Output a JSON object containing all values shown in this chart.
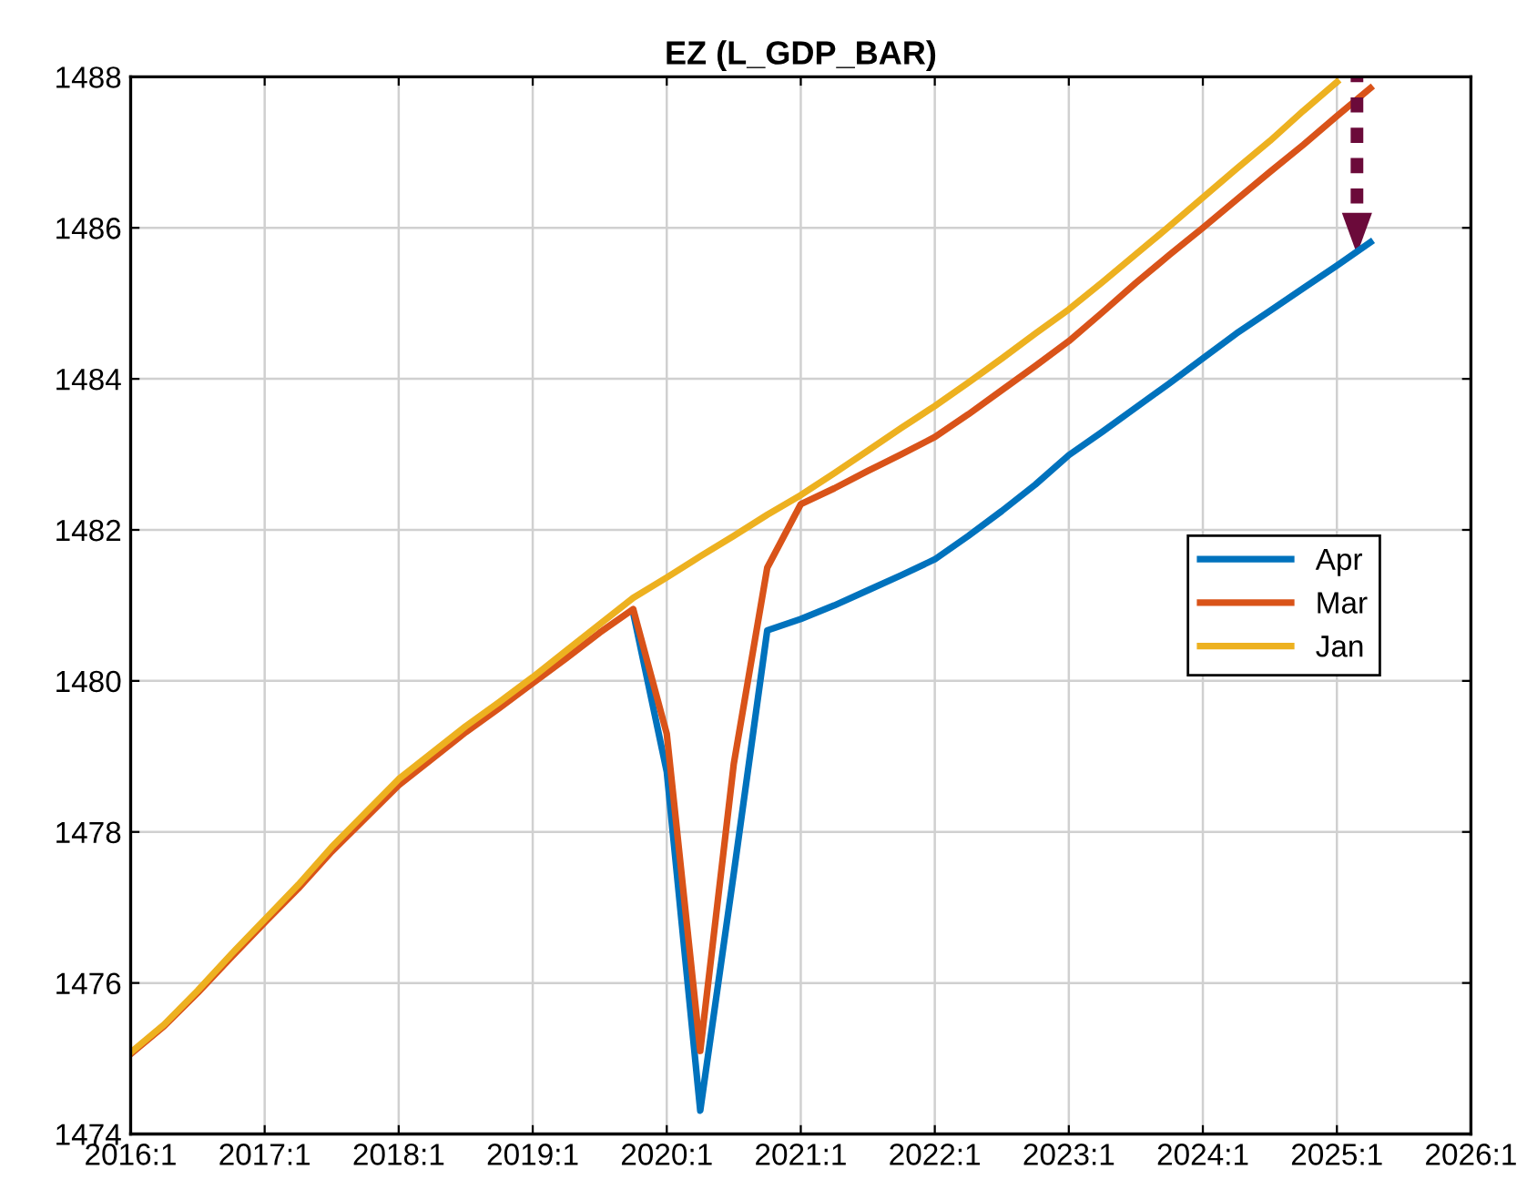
{
  "chart_data": {
    "type": "line",
    "title": "EZ (L_GDP_BAR)",
    "categories": [
      "2016:1",
      null,
      null,
      null,
      "2017:1",
      null,
      null,
      null,
      "2018:1",
      null,
      null,
      null,
      "2019:1",
      null,
      null,
      null,
      "2020:1",
      null,
      null,
      null,
      "2021:1",
      null,
      null,
      null,
      "2022:1",
      null,
      null,
      null,
      "2023:1",
      null,
      null,
      null,
      "2024:1",
      null,
      null,
      null,
      "2025:1",
      null,
      null,
      null,
      "2026:1"
    ],
    "series": [
      {
        "name": "Apr",
        "color": "#0072bd",
        "values": [
          null,
          null,
          null,
          null,
          null,
          null,
          null,
          null,
          null,
          null,
          null,
          null,
          null,
          null,
          null,
          1480.9,
          1478.8,
          1474.31,
          1477.45,
          1480.67,
          1480.82,
          1481.0,
          1481.2,
          1481.4,
          1481.61,
          1481.92,
          1482.25,
          1482.6,
          1482.99,
          1483.3,
          1483.62,
          1483.94,
          1484.27,
          1484.6,
          1484.9,
          1485.2,
          1485.5,
          1485.81,
          null,
          null,
          null
        ]
      },
      {
        "name": "Mar",
        "color": "#d95319",
        "values": [
          1475.06,
          1475.43,
          1475.87,
          1476.34,
          1476.8,
          1477.25,
          1477.74,
          1478.18,
          1478.62,
          1478.97,
          1479.32,
          1479.64,
          1479.97,
          1480.3,
          1480.64,
          1480.95,
          1479.3,
          1475.1,
          1478.9,
          1481.5,
          1482.34,
          1482.55,
          1482.78,
          1483.0,
          1483.23,
          1483.53,
          1483.85,
          1484.17,
          1484.5,
          1484.88,
          1485.27,
          1485.64,
          1486.0,
          1486.37,
          1486.74,
          1487.1,
          1487.48,
          1487.85,
          null,
          null,
          null
        ]
      },
      {
        "name": "Jan",
        "color": "#edb120",
        "values": [
          1475.08,
          1475.45,
          1475.9,
          1476.38,
          1476.84,
          1477.3,
          1477.8,
          1478.25,
          1478.7,
          1479.05,
          1479.4,
          1479.72,
          1480.05,
          1480.4,
          1480.75,
          1481.1,
          1481.37,
          1481.65,
          1481.92,
          1482.2,
          1482.46,
          1482.75,
          1483.05,
          1483.35,
          1483.64,
          1483.95,
          1484.27,
          1484.6,
          1484.92,
          1485.28,
          1485.65,
          1486.02,
          1486.4,
          1486.78,
          1487.15,
          1487.55,
          1487.93,
          null,
          null,
          null,
          null
        ]
      }
    ],
    "ylim": [
      1474,
      1488
    ],
    "yticks": [
      1474,
      1476,
      1478,
      1480,
      1482,
      1484,
      1486,
      1488
    ],
    "grid": true,
    "legend": "right",
    "line_style": "solid",
    "marker": "none"
  }
}
